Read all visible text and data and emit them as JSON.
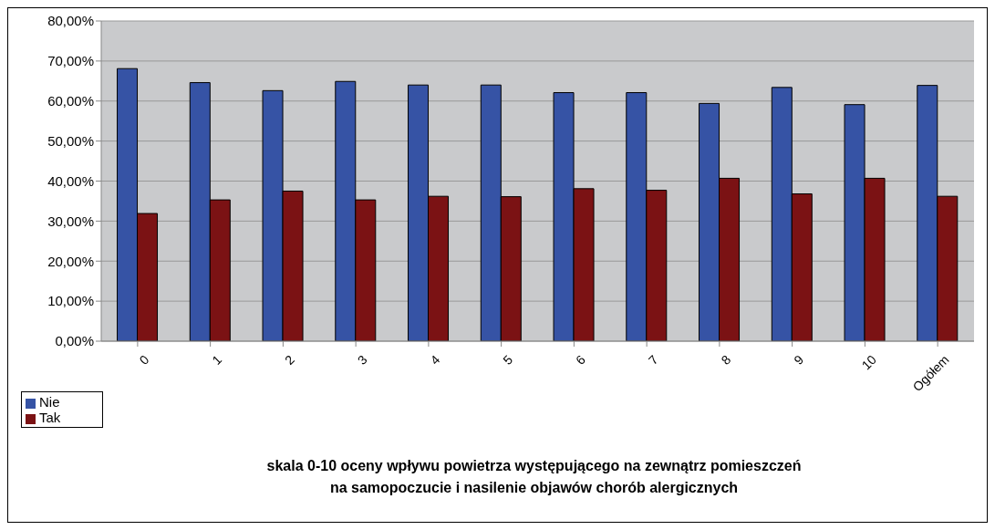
{
  "chart_data": {
    "type": "bar",
    "xlabel": "skala 0-10 oceny wpływu powietrza występującego na zewnątrz pomieszczeń\nna samopoczucie i nasilenie objawów chorób alergicznych",
    "categories": [
      "0",
      "1",
      "2",
      "3",
      "4",
      "5",
      "6",
      "7",
      "8",
      "9",
      "10",
      "Ogółem"
    ],
    "series": [
      {
        "name": "Nie",
        "color": "#3653a5",
        "values": [
          68.1,
          64.6,
          62.6,
          64.9,
          64.0,
          64.0,
          62.1,
          62.1,
          59.4,
          63.4,
          59.1,
          63.9
        ]
      },
      {
        "name": "Tak",
        "color": "#7b1214",
        "values": [
          31.9,
          35.3,
          37.5,
          35.3,
          36.2,
          36.1,
          38.1,
          37.7,
          40.7,
          36.8,
          40.7,
          36.2
        ]
      }
    ],
    "ylim": [
      0,
      80
    ],
    "yticks": [
      {
        "value": 0,
        "label": "0,00%"
      },
      {
        "value": 10,
        "label": "10,00%"
      },
      {
        "value": 20,
        "label": "20,00%"
      },
      {
        "value": 30,
        "label": "30,00%"
      },
      {
        "value": 40,
        "label": "40,00%"
      },
      {
        "value": 50,
        "label": "50,00%"
      },
      {
        "value": 60,
        "label": "60,00%"
      },
      {
        "value": 70,
        "label": "70,00%"
      },
      {
        "value": 80,
        "label": "80,00%"
      }
    ],
    "grid": "y",
    "legend": "bottom left"
  }
}
